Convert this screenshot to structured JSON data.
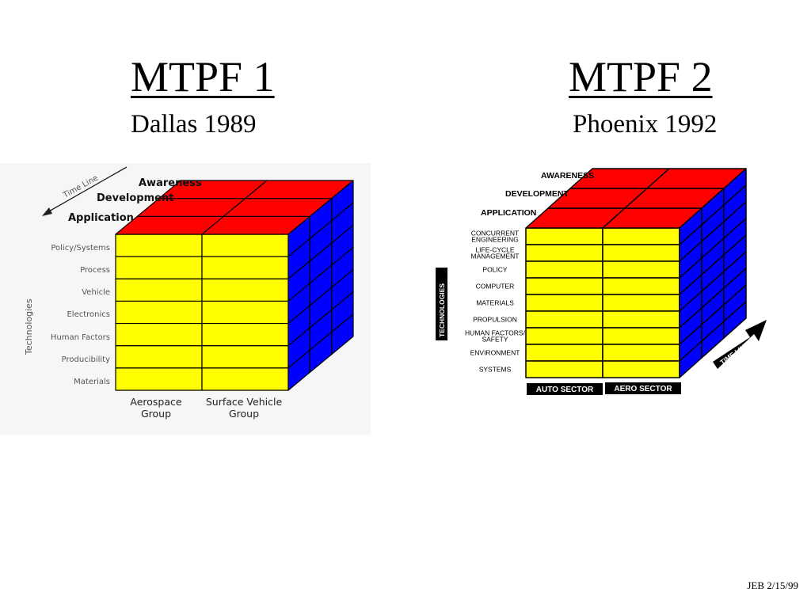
{
  "left": {
    "title": "MTPF 1",
    "subtitle": "Dallas 1989",
    "levels": [
      "Awareness",
      "Development",
      "Application"
    ],
    "time_line": "Time Line",
    "axis_label": "Technologies",
    "technologies": [
      "Policy/Systems",
      "Process",
      "Vehicle",
      "Electronics",
      "Human Factors",
      "Producibility",
      "Materials"
    ],
    "groups": [
      {
        "line1": "Aerospace",
        "line2": "Group"
      },
      {
        "line1": "Surface  Vehicle",
        "line2": "Group"
      }
    ]
  },
  "right": {
    "title": "MTPF 2",
    "subtitle": "Phoenix 1992",
    "levels": [
      "AWARENESS",
      "DEVELOPMENT",
      "APPLICATION"
    ],
    "time_line": "TIME LINE",
    "axis_label": "TECHNOLOGIES",
    "technologies": [
      [
        "CONCURRENT",
        "ENGINEERING"
      ],
      [
        "LIFE-CYCLE",
        "MANAGEMENT"
      ],
      [
        "POLICY"
      ],
      [
        "COMPUTER"
      ],
      [
        "MATERIALS"
      ],
      [
        "PROPULSION"
      ],
      [
        "HUMAN FACTORS/",
        "SAFETY"
      ],
      [
        "ENVIRONMENT"
      ],
      [
        "SYSTEMS"
      ]
    ],
    "sectors": [
      "AUTO SECTOR",
      "AERO SECTOR"
    ]
  },
  "footer": "JEB 2/15/99",
  "colors": {
    "front": "#ffff00",
    "top": "#ff0000",
    "side": "#0000ff",
    "lines": "#000000"
  }
}
